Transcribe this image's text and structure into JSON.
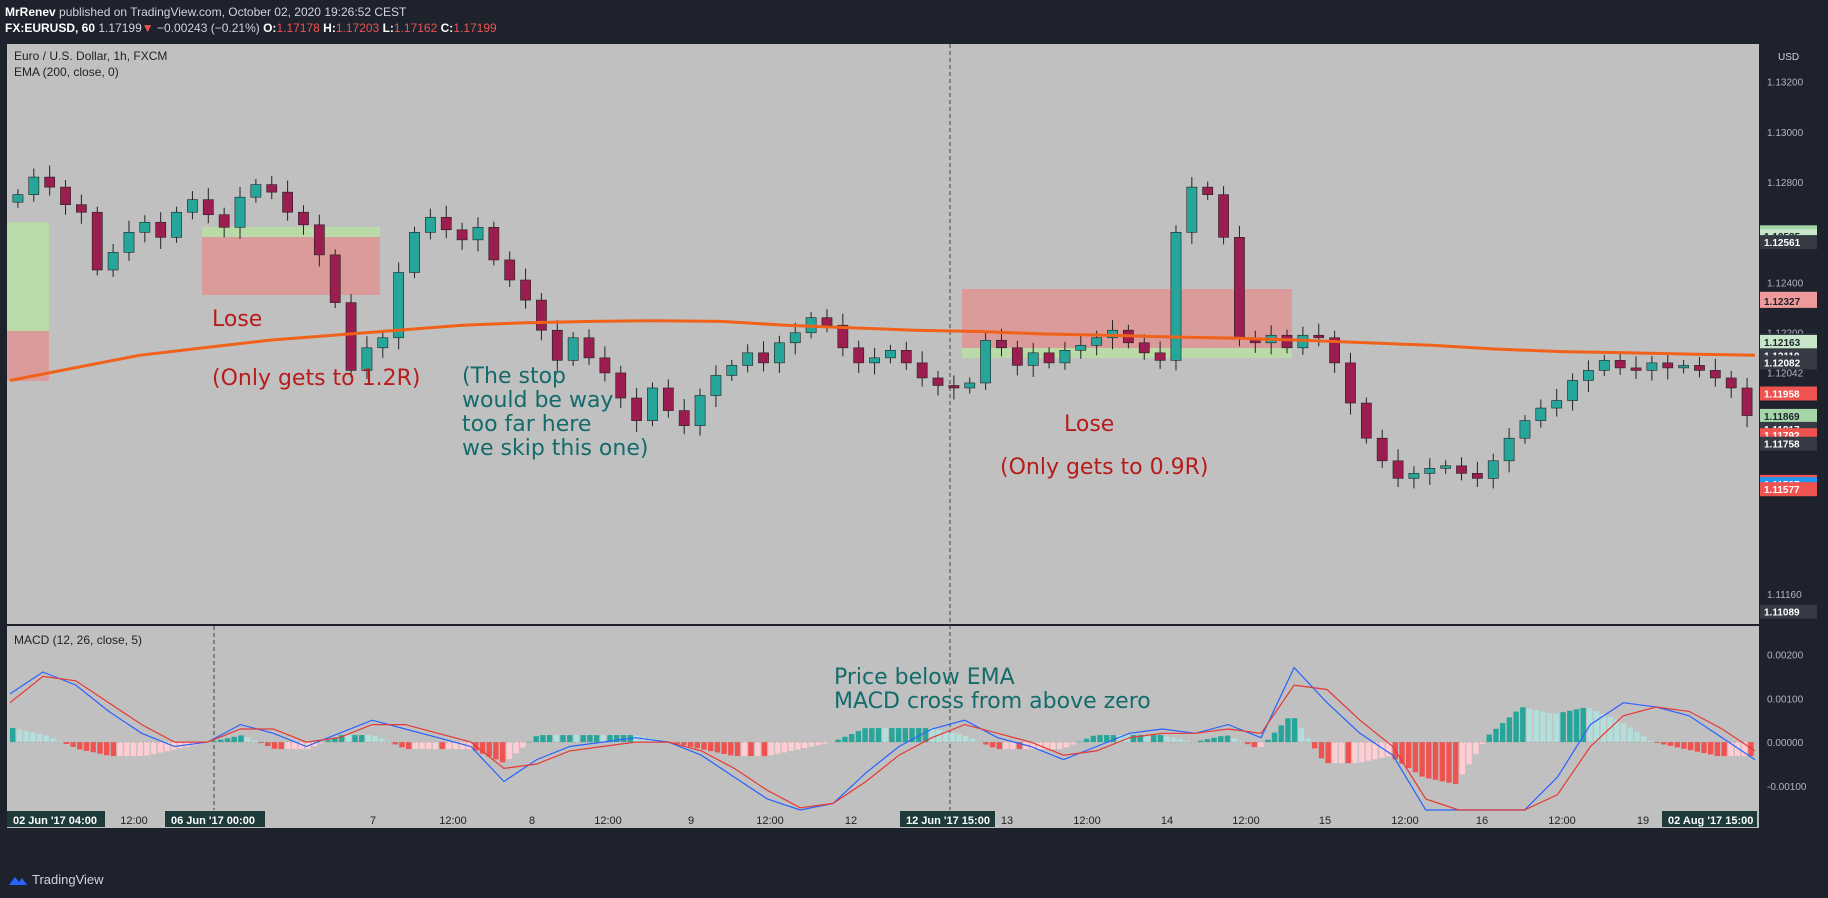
{
  "header": {
    "publisher": "MrRenev",
    "published_text": "published on TradingView.com, October 02, 2020 19:26:52 CEST",
    "symbol": "FX:EURUSD, 60",
    "last": "1.17199",
    "change": "−0.00243 (−0.21%)",
    "o_label": "O:",
    "o": "1.17178",
    "h_label": "H:",
    "h": "1.17203",
    "l_label": "L:",
    "l": "1.17162",
    "c_label": "C:",
    "c": "1.17199"
  },
  "footer": {
    "brand": "TradingView"
  },
  "colors": {
    "pane_bg": "#c0c0c0",
    "bull": "#26a69a",
    "bear": "#9c1d4f",
    "ema": "#f0621a",
    "macd": "#2962ff",
    "signal": "#e53935",
    "loss_zone": "#e58f8f",
    "profit_zone": "#b8e0a0",
    "annot_red": "#b71c1c",
    "annot_teal": "#136b6b"
  },
  "chart_data": [
    {
      "type": "candlestick",
      "title": "Euro / U.S. Dollar, 1h, FXCM",
      "indicator": "EMA (200, close, 0)",
      "currency": "USD",
      "ylim": [
        1.1104,
        1.1335
      ],
      "y_ticks": [
        "1.13200",
        "1.13000",
        "1.12800",
        "1.12600",
        "1.12585",
        "1.12561",
        "1.12400",
        "1.12335",
        "1.12327",
        "1.12200",
        "1.12169",
        "1.12163",
        "1.12110",
        "1.12082",
        "1.12071",
        "1.12042",
        "1.11958",
        "1.11881",
        "1.11869",
        "1.11817",
        "1.11792",
        "1.11758",
        "1.11606",
        "1.11597",
        "1.11577",
        "1.11160",
        "1.11089",
        "1.11050"
      ],
      "price_tags": [
        {
          "value": "1.12600",
          "color": "#a5d6a7"
        },
        {
          "value": "1.12585",
          "color": "#c8e6c9"
        },
        {
          "value": "1.12561",
          "color": "#363a45"
        },
        {
          "value": "1.12335",
          "color": "#ef9a9a"
        },
        {
          "value": "1.12327",
          "color": "#ef9a9a"
        },
        {
          "value": "1.12169",
          "color": "#363a45"
        },
        {
          "value": "1.12163",
          "color": "#c8e6c9"
        },
        {
          "value": "1.12110",
          "color": "#363a45"
        },
        {
          "value": "1.12082",
          "color": "#363a45"
        },
        {
          "value": "1.11958",
          "color": "#ef5350"
        },
        {
          "value": "1.11869",
          "color": "#a5d6a7"
        },
        {
          "value": "1.11817",
          "color": "#363a45"
        },
        {
          "value": "1.11792",
          "color": "#ef5350"
        },
        {
          "value": "1.11758",
          "color": "#363a45"
        },
        {
          "value": "1.11606",
          "color": "#ef5350"
        },
        {
          "value": "1.11597",
          "color": "#2196f3"
        },
        {
          "value": "1.11577",
          "color": "#ef5350"
        },
        {
          "value": "1.11089",
          "color": "#363a45"
        }
      ],
      "ema_200": [
        1.1201,
        1.1206,
        1.1211,
        1.1214,
        1.1217,
        1.1219,
        1.1221,
        1.1223,
        1.1224,
        1.12245,
        1.12248,
        1.12245,
        1.1223,
        1.1222,
        1.1221,
        1.12205,
        1.12195,
        1.1219,
        1.12183,
        1.12178,
        1.1217,
        1.1216,
        1.1215,
        1.12135,
        1.12125,
        1.1212,
        1.12115,
        1.1211
      ],
      "close": [
        1.1275,
        1.1282,
        1.1278,
        1.1271,
        1.1268,
        1.1245,
        1.1252,
        1.126,
        1.1264,
        1.1258,
        1.1268,
        1.1273,
        1.1267,
        1.1262,
        1.1274,
        1.1279,
        1.1276,
        1.1268,
        1.1263,
        1.1251,
        1.1232,
        1.1205,
        1.1214,
        1.1218,
        1.1244,
        1.126,
        1.1266,
        1.1261,
        1.1257,
        1.1262,
        1.1249,
        1.1241,
        1.1233,
        1.1221,
        1.1209,
        1.1218,
        1.121,
        1.1204,
        1.1194,
        1.1185,
        1.1198,
        1.1189,
        1.1183,
        1.1195,
        1.1203,
        1.1207,
        1.1212,
        1.1208,
        1.1216,
        1.122,
        1.1226,
        1.1223,
        1.1214,
        1.1208,
        1.121,
        1.1213,
        1.1208,
        1.1202,
        1.1199,
        1.1198,
        1.12,
        1.1217,
        1.1214,
        1.1207,
        1.1212,
        1.1208,
        1.1213,
        1.1215,
        1.1218,
        1.1221,
        1.1216,
        1.1212,
        1.1209,
        1.126,
        1.1278,
        1.1275,
        1.1258,
        1.1218,
        1.1216,
        1.1219,
        1.1214,
        1.1219,
        1.1218,
        1.1208,
        1.1192,
        1.1178,
        1.1169,
        1.1162,
        1.1164,
        1.1166,
        1.1167,
        1.1164,
        1.1162,
        1.1169,
        1.1178,
        1.1185,
        1.119,
        1.1193,
        1.1201,
        1.1205,
        1.1209,
        1.1206,
        1.1205,
        1.1208,
        1.1206,
        1.1207,
        1.1205,
        1.1202,
        1.1198,
        1.1187
      ]
    },
    {
      "type": "macd",
      "title": "MACD (12, 26, close, 5)",
      "ylim": [
        -0.00155,
        0.00265
      ],
      "y_ticks": [
        "0.00200",
        "0.00100",
        "0.00000",
        "-0.00100"
      ],
      "macd": [
        0.0011,
        0.0016,
        0.0013,
        0.0007,
        0.0002,
        -0.0001,
        0.0,
        0.0004,
        0.0002,
        -0.0001,
        0.0002,
        0.0005,
        0.0003,
        0.0001,
        -0.0001,
        -0.0009,
        -0.0004,
        -0.0001,
        0.0,
        0.0001,
        0.0,
        -0.0003,
        -0.0008,
        -0.0013,
        -0.0016,
        -0.0014,
        -0.0007,
        -0.0001,
        0.0003,
        0.0005,
        0.0001,
        -0.0001,
        -0.0004,
        -0.0001,
        0.0002,
        0.0003,
        0.0002,
        0.0004,
        0.0001,
        0.0017,
        0.0009,
        0.0002,
        -0.0003,
        -0.0018,
        -0.0032,
        -0.0028,
        -0.0016,
        -0.0008,
        0.0004,
        0.0009,
        0.0008,
        0.0006,
        0.0001,
        -0.0004
      ],
      "signal": [
        0.0009,
        0.0015,
        0.0014,
        0.0009,
        0.0004,
        0.0,
        0.0,
        0.0003,
        0.0003,
        0.0,
        0.0001,
        0.0004,
        0.0004,
        0.0002,
        0.0,
        -0.0006,
        -0.0005,
        -0.0002,
        -0.0001,
        0.0,
        0.0,
        -0.0002,
        -0.0006,
        -0.0011,
        -0.0015,
        -0.0014,
        -0.0009,
        -0.0003,
        0.0001,
        0.0004,
        0.0002,
        0.0,
        -0.0003,
        -0.0002,
        0.0001,
        0.0002,
        0.0002,
        0.0003,
        0.0002,
        0.0013,
        0.0012,
        0.0005,
        -0.0001,
        -0.0013,
        -0.0026,
        -0.0029,
        -0.0021,
        -0.0012,
        -0.0001,
        0.0006,
        0.0008,
        0.0007,
        0.0003,
        -0.0002
      ]
    }
  ],
  "x_axis": {
    "ticks": [
      "12:00",
      "7",
      "12:00",
      "8",
      "12:00",
      "9",
      "12:00",
      "12",
      "13",
      "12:00",
      "14",
      "12:00",
      "15",
      "12:00",
      "16",
      "12:00",
      "19"
    ],
    "tags": [
      "02 Jun '17   04:00",
      "06 Jun '17   00:00",
      "12 Jun '17   15:00",
      "02 Aug '17   15:00"
    ]
  },
  "annotations": [
    {
      "text": "Lose",
      "color": "red"
    },
    {
      "text": "(Only gets to 1.2R)",
      "color": "red"
    },
    {
      "text": "(The stop",
      "color": "teal"
    },
    {
      "text": "would be way",
      "color": "teal"
    },
    {
      "text": "too far here",
      "color": "teal"
    },
    {
      "text": "we skip this one)",
      "color": "teal"
    },
    {
      "text": "Lose",
      "color": "red"
    },
    {
      "text": "(Only gets to 0.9R)",
      "color": "red"
    },
    {
      "text": "Price below EMA",
      "color": "teal"
    },
    {
      "text": "MACD cross from above zero",
      "color": "teal"
    }
  ]
}
